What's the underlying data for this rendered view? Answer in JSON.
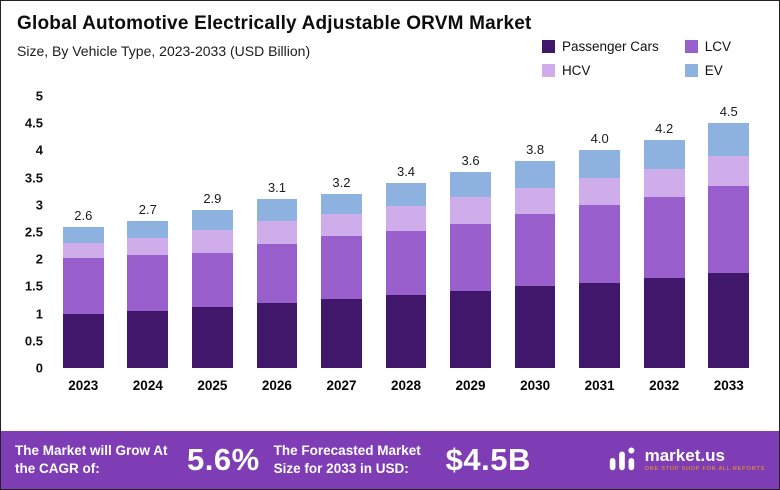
{
  "header": {
    "title": "Global Automotive Electrically Adjustable ORVM Market",
    "subtitle": "Size, By Vehicle Type, 2023-2033 (USD Billion)"
  },
  "legend": {
    "items": [
      {
        "label": "Passenger Cars",
        "color": "#41176b"
      },
      {
        "label": "LCV",
        "color": "#9960cd"
      },
      {
        "label": "HCV",
        "color": "#cfadea"
      },
      {
        "label": "EV",
        "color": "#8eb2e0"
      }
    ]
  },
  "chart_data": {
    "type": "bar",
    "stacked": true,
    "title": "Global Automotive Electrically Adjustable ORVM Market Size, By Vehicle Type, 2023-2033 (USD Billion)",
    "categories": [
      "2023",
      "2024",
      "2025",
      "2026",
      "2027",
      "2028",
      "2029",
      "2030",
      "2031",
      "2032",
      "2033"
    ],
    "series": [
      {
        "name": "Passenger Cars",
        "color": "#41176b",
        "values": [
          1.0,
          1.05,
          1.12,
          1.2,
          1.27,
          1.34,
          1.42,
          1.5,
          1.57,
          1.65,
          1.75
        ]
      },
      {
        "name": "LCV",
        "color": "#9960cd",
        "values": [
          1.02,
          1.02,
          1.0,
          1.08,
          1.16,
          1.18,
          1.22,
          1.33,
          1.42,
          1.5,
          1.6
        ]
      },
      {
        "name": "HCV",
        "color": "#cfadea",
        "values": [
          0.28,
          0.32,
          0.42,
          0.42,
          0.4,
          0.46,
          0.5,
          0.47,
          0.5,
          0.51,
          0.55
        ]
      },
      {
        "name": "EV",
        "color": "#8eb2e0",
        "values": [
          0.3,
          0.31,
          0.36,
          0.4,
          0.37,
          0.42,
          0.46,
          0.5,
          0.51,
          0.54,
          0.6
        ]
      }
    ],
    "totals": [
      "2.6",
      "2.7",
      "2.9",
      "3.1",
      "3.2",
      "3.4",
      "3.6",
      "3.8",
      "4.0",
      "4.2",
      "4.5"
    ],
    "xlabel": "",
    "ylabel": "",
    "ylim": [
      0,
      5
    ],
    "yticks": [
      "0",
      "0.5",
      "1",
      "1.5",
      "2",
      "2.5",
      "3",
      "3.5",
      "4",
      "4.5",
      "5"
    ],
    "grid": false,
    "legend_position": "top-right"
  },
  "footer": {
    "bg_color": "#7e3cb5",
    "cagr_label": "The Market will Grow At the CAGR of:",
    "cagr_value": "5.6%",
    "forecast_label": "The Forecasted Market Size for 2033 in USD:",
    "forecast_value": "$4.5B",
    "brand_name": "market.us",
    "brand_tagline": "One Stop Shop For All Reports"
  }
}
